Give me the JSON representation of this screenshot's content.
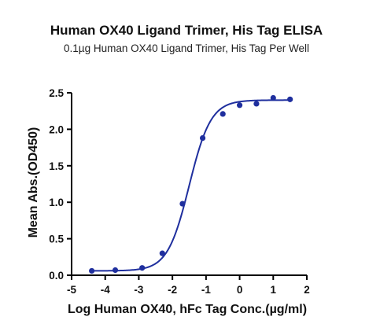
{
  "chart_data": {
    "type": "scatter",
    "title": "Human OX40 Ligand Trimer, His Tag ELISA",
    "subtitle": "0.1µg Human OX40 Ligand Trimer, His Tag Per Well",
    "xlabel": "Log Human OX40, hFc Tag Conc.(µg/ml)",
    "ylabel": "Mean Abs.(OD450)",
    "xlim": [
      -5,
      2
    ],
    "ylim": [
      0,
      2.5
    ],
    "x_ticks": [
      -5,
      -4,
      -3,
      -2,
      -1,
      0,
      1,
      2
    ],
    "y_ticks": [
      0.0,
      0.5,
      1.0,
      1.5,
      2.0,
      2.5
    ],
    "x_tick_labels": [
      "-5",
      "-4",
      "-3",
      "-2",
      "-1",
      "0",
      "1",
      "2"
    ],
    "y_tick_labels": [
      "0.0",
      "0.5",
      "1.0",
      "1.5",
      "2.0",
      "2.5"
    ],
    "grid": false,
    "legend": "none",
    "series": [
      {
        "color": "#1f2f9e",
        "x": [
          -4.4,
          -3.7,
          -2.9,
          -2.3,
          -1.7,
          -1.1,
          -0.5,
          0.0,
          0.5,
          1.0,
          1.5
        ],
        "y": [
          0.06,
          0.07,
          0.1,
          0.3,
          0.98,
          1.88,
          2.21,
          2.33,
          2.35,
          2.43,
          2.41
        ]
      }
    ],
    "fit_curve": {
      "model": "4PL",
      "bottom": 0.06,
      "top": 2.4,
      "logEC50": -1.5,
      "hillslope": 1.35,
      "x_range": [
        -4.4,
        1.5
      ]
    }
  }
}
